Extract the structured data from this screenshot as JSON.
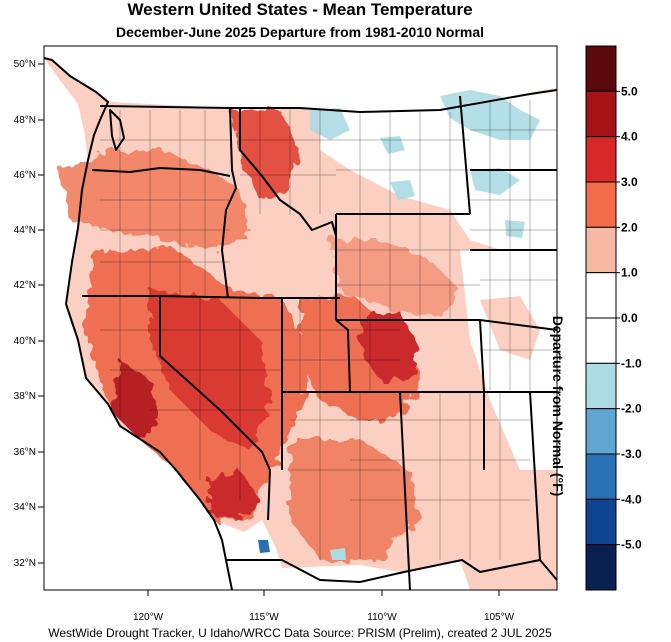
{
  "title": "Western United States - Mean Temperature",
  "subtitle": "December-June 2025  Departure from 1981-2010 Normal",
  "credit": "WestWide Drought Tracker, U Idaho/WRCC Data Source: PRISM (Prelim), created  2 JUL 2025",
  "colorbar": {
    "title": "Departure from Normal (°F)",
    "labels": [
      "5.0",
      "4.0",
      "3.0",
      "2.0",
      "1.0",
      "0.0",
      "-1.0",
      "-2.0",
      "-3.0",
      "-4.0",
      "-5.0"
    ],
    "colors": [
      "#5a0a0a",
      "#a51318",
      "#d7282a",
      "#f26c4a",
      "#f7b8a4",
      "#ffffff",
      "#ffffff",
      "#acdbe4",
      "#5fa6d3",
      "#2a70b4",
      "#0d4590",
      "#08214f"
    ]
  },
  "axes": {
    "lat_labels": [
      "50°N",
      "48°N",
      "46°N",
      "44°N",
      "42°N",
      "40°N",
      "38°N",
      "36°N",
      "34°N",
      "32°N"
    ],
    "lon_labels": [
      "120°W",
      "115°W",
      "110°W",
      "105°W"
    ]
  }
}
